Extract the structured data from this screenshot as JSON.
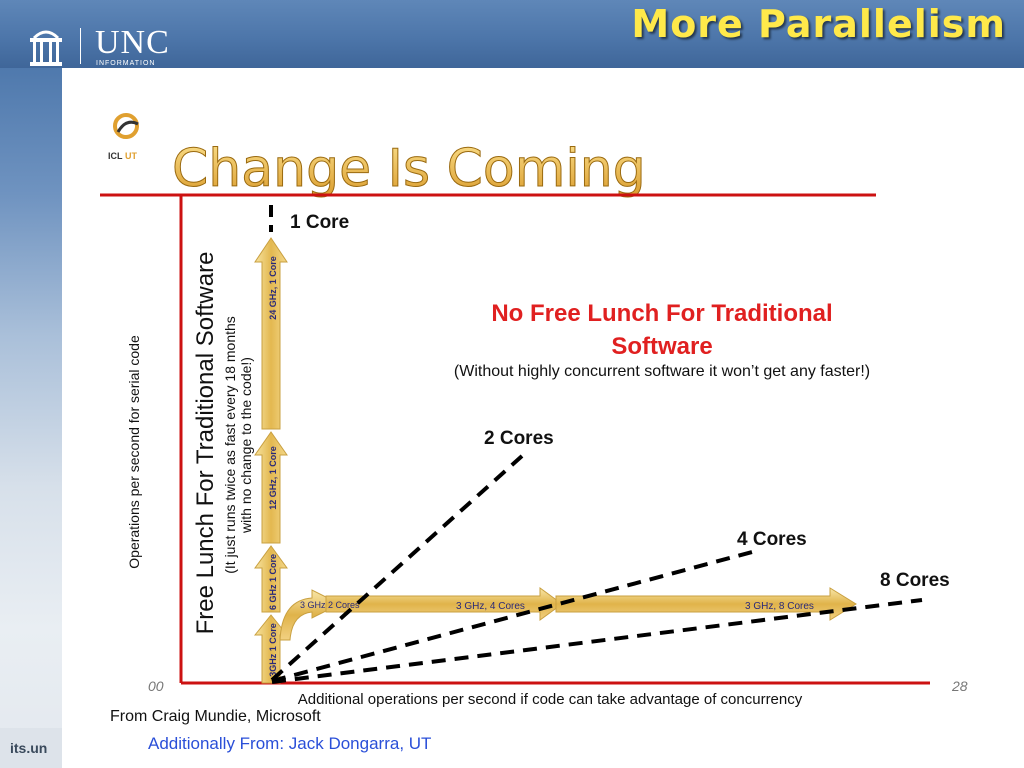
{
  "header": {
    "title": "More Parallelism",
    "logo_text": "UNC",
    "logo_subtext": "INFORMATION"
  },
  "footer": {
    "site": "its.un",
    "source_1": "From Craig Mundie, Microsoft",
    "source_2": "Additionally From: Jack Dongarra, UT"
  },
  "figure": {
    "badge": "ICL",
    "badge_accent": "UT",
    "heading": "Change Is Coming",
    "core_labels": {
      "one": "1 Core",
      "two": "2 Cores",
      "four": "4 Cores",
      "eight": "8 Cores"
    },
    "no_free_lunch": {
      "line1": "No Free Lunch For Traditional",
      "line2": "Software",
      "line3": "(Without highly concurrent software it won’t get any faster!)"
    },
    "y_axis_label": "Operations per second for serial code",
    "free_lunch": {
      "line1": "Free Lunch For Traditional Software",
      "line2": "(It just runs twice as fast every 18 months",
      "line3": "with no change to the code!)"
    },
    "x_axis_label": "Additional operations per second if code can take advantage of concurrency",
    "x_start": "00",
    "x_end": "28",
    "vertical_arrow_labels": [
      "24 GHz, 1 Core",
      "12 GHz, 1 Core",
      "6 GHz 1 Core",
      "3GHz 1 Core"
    ],
    "horizontal_arrow_labels": [
      "3 GHz 2 Cores",
      "3 GHz, 4 Cores",
      "3 GHz, 8 Cores"
    ],
    "colors": {
      "axis_red": "#cc1111",
      "title_red": "#e02020",
      "arrow_gold": "#e8c468",
      "heading_gold": "#f0c050"
    }
  }
}
